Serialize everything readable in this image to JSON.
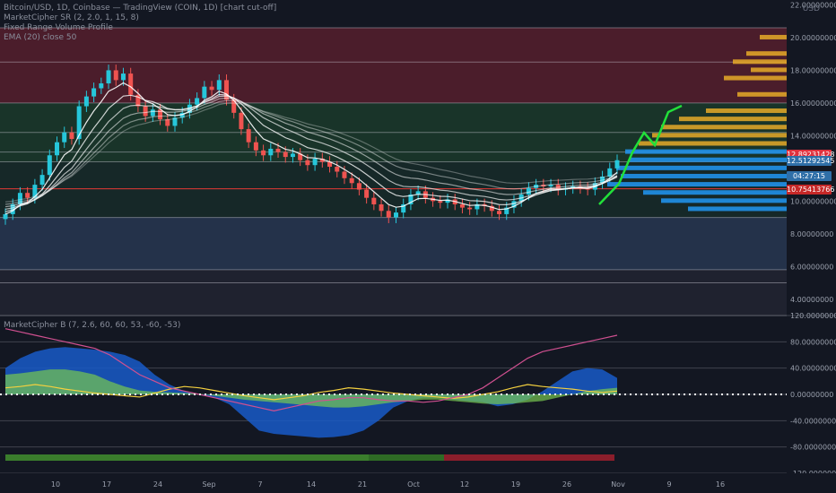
{
  "legend": {
    "main": "Bitcoin/USD, 1D, Coinbase — TradingView (COIN, 1D) [chart cut-off]",
    "line2": "MarketCipher SR (2, 2.0, 1, 15, 8)",
    "line3": "Fixed Range Volume Profile",
    "line4": "EMA (20) close 50",
    "osc": "MarketCipher B (7, 2.6, 60, 60, 53, -60, -53)"
  },
  "top_right_label": "USD",
  "price_tags": [
    {
      "label": "12.89231428",
      "color": "#e0313d"
    },
    {
      "label": "12.51292545",
      "color": "#2f6fa8"
    },
    {
      "label": "04:27:15",
      "color": "#2f6fa8"
    },
    {
      "label": "10.75413766",
      "color": "#c62828"
    }
  ],
  "chart_data": [
    {
      "type": "candlestick",
      "title": "",
      "y_axis_labels": [
        "22.00000000",
        "20.00000000",
        "18.00000000",
        "16.00000000",
        "14.00000000",
        "10.00000000",
        "8.00000000",
        "6.00000000",
        "4.00000000"
      ],
      "ylim": [
        3,
        22.3
      ],
      "x_ticks": [
        "10",
        "17",
        "24",
        "Sep",
        "7",
        "14",
        "21",
        "Oct",
        "12",
        "19",
        "26",
        "Nov",
        "9",
        "16"
      ],
      "close": [
        9.2,
        9.8,
        10.5,
        10.2,
        11.0,
        11.6,
        12.8,
        13.6,
        14.2,
        13.8,
        15.8,
        16.4,
        16.9,
        17.2,
        18.0,
        17.4,
        17.8,
        16.5,
        15.8,
        15.2,
        15.6,
        15.0,
        14.6,
        15.1,
        15.4,
        15.9,
        16.3,
        17.0,
        16.8,
        17.4,
        16.2,
        15.4,
        14.4,
        13.6,
        13.1,
        12.8,
        13.2,
        13.0,
        12.7,
        12.9,
        12.5,
        12.2,
        12.6,
        12.4,
        12.1,
        11.8,
        11.4,
        11.1,
        10.7,
        10.2,
        9.8,
        9.4,
        9.0,
        9.3,
        9.8,
        10.4,
        10.6,
        10.2,
        10.0,
        9.9,
        10.1,
        9.8,
        9.6,
        9.5,
        9.8,
        9.7,
        9.4,
        9.2,
        9.6,
        10.0,
        10.4,
        10.8,
        11.0,
        10.9,
        11.0,
        10.7,
        10.8,
        10.9,
        10.8,
        10.7,
        11.1,
        11.5,
        12.0,
        12.5
      ]
    },
    {
      "type": "area",
      "title": "",
      "y_axis_labels": [
        "120.00000000",
        "80.00000000",
        "40.00000000",
        "0.00000000",
        "-40.00000000",
        "-80.00000000",
        "-120.00000000"
      ],
      "ylim": [
        -120,
        120
      ],
      "series": [
        {
          "values": [
            40,
            55,
            65,
            70,
            72,
            70,
            68,
            65,
            60,
            50,
            30,
            15,
            5,
            0,
            -5,
            -15,
            -35,
            -55,
            -60,
            -62,
            -64,
            -66,
            -65,
            -62,
            -55,
            -40,
            -20,
            -10,
            -5,
            -5,
            -8,
            -10,
            -12,
            -18,
            -15,
            -8,
            5,
            20,
            35,
            40,
            38,
            25
          ]
        },
        {
          "values": [
            30,
            32,
            35,
            38,
            38,
            35,
            30,
            20,
            12,
            6,
            4,
            3,
            2,
            1,
            -2,
            -5,
            -8,
            -10,
            -12,
            -14,
            -16,
            -18,
            -20,
            -20,
            -18,
            -15,
            -12,
            -10,
            -8,
            -8,
            -10,
            -12,
            -14,
            -15,
            -14,
            -12,
            -10,
            -5,
            0,
            5,
            8,
            10
          ]
        },
        {
          "values": [
            10,
            12,
            15,
            12,
            8,
            5,
            2,
            0,
            -2,
            -4,
            2,
            8,
            12,
            10,
            6,
            2,
            -2,
            -5,
            -8,
            -5,
            -2,
            3,
            6,
            10,
            8,
            5,
            2,
            0,
            -2,
            -4,
            -6,
            -4,
            0,
            4,
            10,
            15,
            12,
            10,
            8,
            5,
            3,
            5
          ]
        },
        {
          "values": [
            100,
            95,
            90,
            85,
            80,
            75,
            70,
            60,
            45,
            30,
            20,
            10,
            5,
            0,
            -5,
            -10,
            -15,
            -20,
            -25,
            -20,
            -15,
            -10,
            -8,
            -5,
            -5,
            -8,
            -10,
            -10,
            -12,
            -10,
            -5,
            0,
            10,
            25,
            40,
            55,
            65,
            70,
            75,
            80,
            85,
            90
          ]
        }
      ]
    }
  ]
}
